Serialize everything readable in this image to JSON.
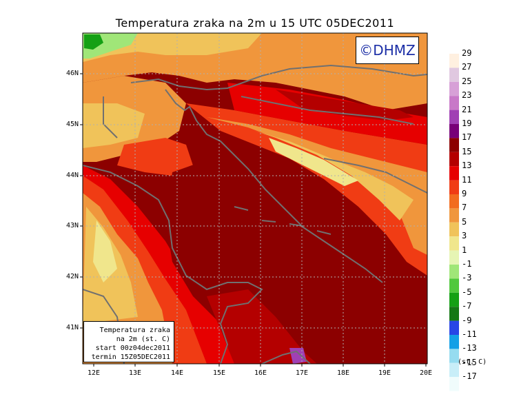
{
  "title": "Temperatura zraka na 2m u 15 UTC 05DEC2011",
  "logo": "©DHMZ",
  "info": [
    "Temperatura zraka",
    "na 2m (st. C)",
    "start 00z04dec2011",
    "termin 15Z05DEC2011"
  ],
  "lat_labels": [
    "46N",
    "45N",
    "44N",
    "43N",
    "42N",
    "41N"
  ],
  "lon_labels": [
    "12E",
    "13E",
    "14E",
    "15E",
    "16E",
    "17E",
    "18E",
    "19E",
    "20E"
  ],
  "legend": {
    "unit": "(st. C)",
    "labels": [
      "29",
      "27",
      "25",
      "23",
      "21",
      "19",
      "17",
      "15",
      "13",
      "11",
      "9",
      "7",
      "5",
      "3",
      "1",
      "-1",
      "-3",
      "-5",
      "-7",
      "-9",
      "-11",
      "-13",
      "-15",
      "-17"
    ],
    "colors": [
      "#fff0e0",
      "#e0c8e0",
      "#d7a0d7",
      "#c878c8",
      "#a040b4",
      "#780078",
      "#8c0000",
      "#b40000",
      "#e60000",
      "#f03c14",
      "#f26c1e",
      "#f0963c",
      "#f0c35a",
      "#f0e68c",
      "#e6f5b4",
      "#a0e678",
      "#50c83c",
      "#14a014",
      "#147814",
      "#2846e6",
      "#14a0e6",
      "#96dcf0",
      "#c8eef8",
      "#f0fcfc"
    ]
  }
}
